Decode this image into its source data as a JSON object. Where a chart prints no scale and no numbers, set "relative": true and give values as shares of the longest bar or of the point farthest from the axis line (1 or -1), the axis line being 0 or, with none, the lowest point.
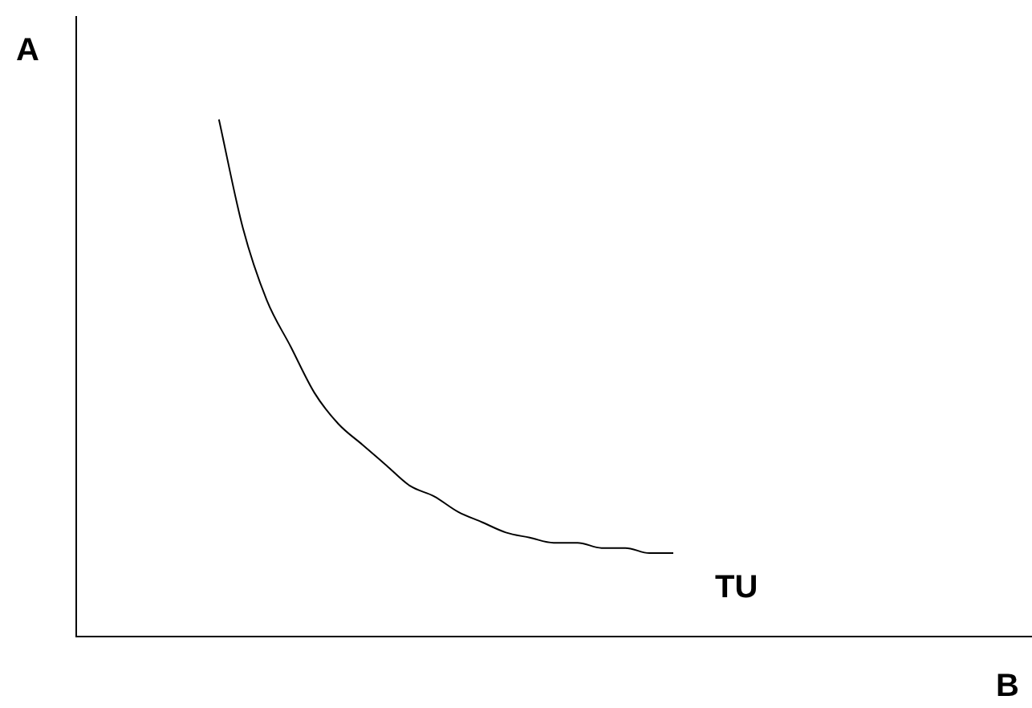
{
  "chart_data": {
    "type": "line",
    "relative": true,
    "xlabel": "B",
    "ylabel": "A",
    "annotations": [
      "TU"
    ],
    "legend": false,
    "marker": "none",
    "categories": [
      null,
      null,
      null,
      null,
      null,
      null,
      null,
      null,
      null,
      null,
      null,
      null,
      null,
      null,
      null,
      null,
      null,
      null,
      null,
      null,
      null,
      null,
      null,
      null,
      null,
      null,
      null,
      null,
      null,
      null,
      null,
      null,
      null,
      null,
      null,
      null,
      null,
      null,
      null,
      null,
      null
    ],
    "series": [
      {
        "color": "#000000",
        "values": [
          null,
          null,
          null,
          null,
          null,
          null,
          1,
          0.79,
          0.65,
          0.56,
          0.47,
          0.41,
          0.37,
          0.33,
          0.29,
          0.27,
          0.24,
          0.22,
          0.2,
          0.19,
          0.18,
          0.18,
          0.17,
          0.17,
          0.16,
          0.16,
          null,
          null,
          null,
          null,
          null,
          null,
          null,
          null,
          null,
          null,
          null,
          null,
          null,
          null,
          null
        ]
      }
    ]
  }
}
